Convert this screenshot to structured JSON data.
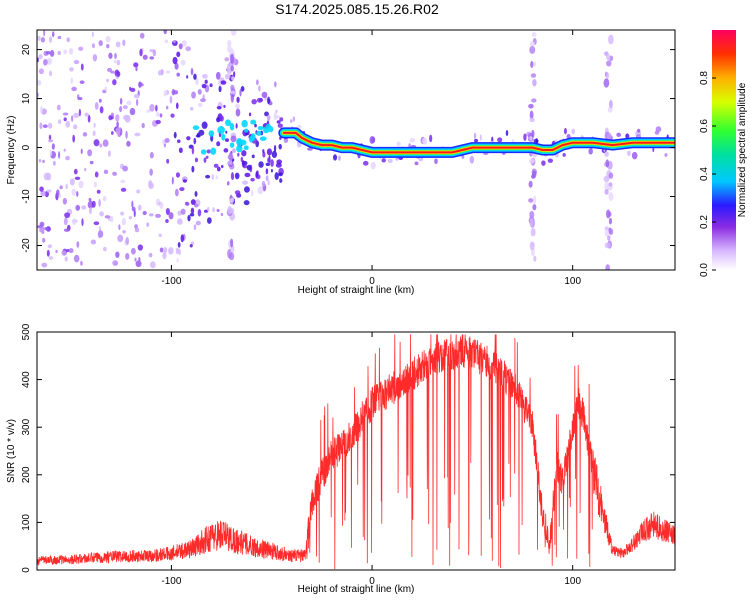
{
  "title": "S174.2025.085.15.26.R02",
  "colors": {
    "snr_line": "#ff2a2a",
    "spectral_core": "#ff1a1a",
    "spectral_scatter": "#6a00ff"
  },
  "chart_data": [
    {
      "type": "heatmap",
      "title": "",
      "xlabel": "Height of straight line (km)",
      "ylabel": "Frequency (Hz)",
      "xlim": [
        -167,
        151
      ],
      "ylim": [
        -25,
        24
      ],
      "x_ticks": [
        -100,
        0,
        100
      ],
      "x_tick_labels": [
        "-100",
        "0",
        "100"
      ],
      "y_ticks": [
        -20,
        -10,
        0,
        10,
        20
      ],
      "y_tick_labels": [
        "-20",
        "-10",
        "0",
        "10",
        "20"
      ],
      "colorbar": {
        "label": "Normalized spectral amplitude",
        "range": [
          0,
          1
        ],
        "ticks": [
          0.0,
          0.2,
          0.4,
          0.6,
          0.8
        ],
        "tick_labels": [
          "0.0",
          "0.2",
          "0.4",
          "0.6",
          "0.8"
        ],
        "colormap": "rainbow"
      },
      "ridge": {
        "name": "dominant frequency track",
        "x": [
          -44,
          -38,
          -35,
          -30,
          -25,
          -20,
          -15,
          -10,
          -5,
          0,
          10,
          20,
          30,
          40,
          45,
          50,
          60,
          70,
          80,
          85,
          90,
          95,
          100,
          110,
          120,
          130,
          140,
          151
        ],
        "y": [
          3,
          3,
          2,
          1,
          0.5,
          0.5,
          0,
          0,
          -0.5,
          -1,
          -1,
          -1,
          -1,
          -1,
          -0.5,
          0,
          0,
          0,
          0,
          -0.5,
          -0.5,
          0.5,
          1,
          1,
          0.5,
          1,
          1,
          1
        ]
      },
      "grid": false
    },
    {
      "type": "line",
      "title": "",
      "xlabel": "Height of straight line (km)",
      "ylabel": "SNR (10 * v/v)",
      "xlim": [
        -167,
        151
      ],
      "ylim": [
        0,
        500
      ],
      "x_ticks": [
        -100,
        0,
        100
      ],
      "x_tick_labels": [
        "-100",
        "0",
        "100"
      ],
      "y_ticks": [
        0,
        100,
        200,
        300,
        400,
        500
      ],
      "y_tick_labels": [
        "0",
        "100",
        "200",
        "300",
        "400",
        "500"
      ],
      "series": [
        {
          "x": [
            -167,
            -150,
            -130,
            -110,
            -100,
            -90,
            -80,
            -75,
            -70,
            -60,
            -50,
            -40,
            -33,
            -30,
            -25,
            -20,
            -15,
            -10,
            -5,
            0,
            10,
            20,
            30,
            40,
            45,
            50,
            60,
            70,
            75,
            80,
            85,
            88,
            90,
            92,
            95,
            100,
            103,
            105,
            110,
            115,
            120,
            125,
            130,
            135,
            140,
            145,
            151
          ],
          "y": [
            20,
            22,
            28,
            30,
            35,
            45,
            70,
            75,
            65,
            50,
            40,
            30,
            30,
            140,
            200,
            240,
            260,
            280,
            320,
            350,
            380,
            410,
            440,
            455,
            460,
            455,
            430,
            390,
            350,
            300,
            120,
            50,
            120,
            220,
            180,
            300,
            350,
            330,
            220,
            120,
            40,
            35,
            55,
            80,
            95,
            85,
            70
          ]
        }
      ],
      "grid": false
    }
  ]
}
